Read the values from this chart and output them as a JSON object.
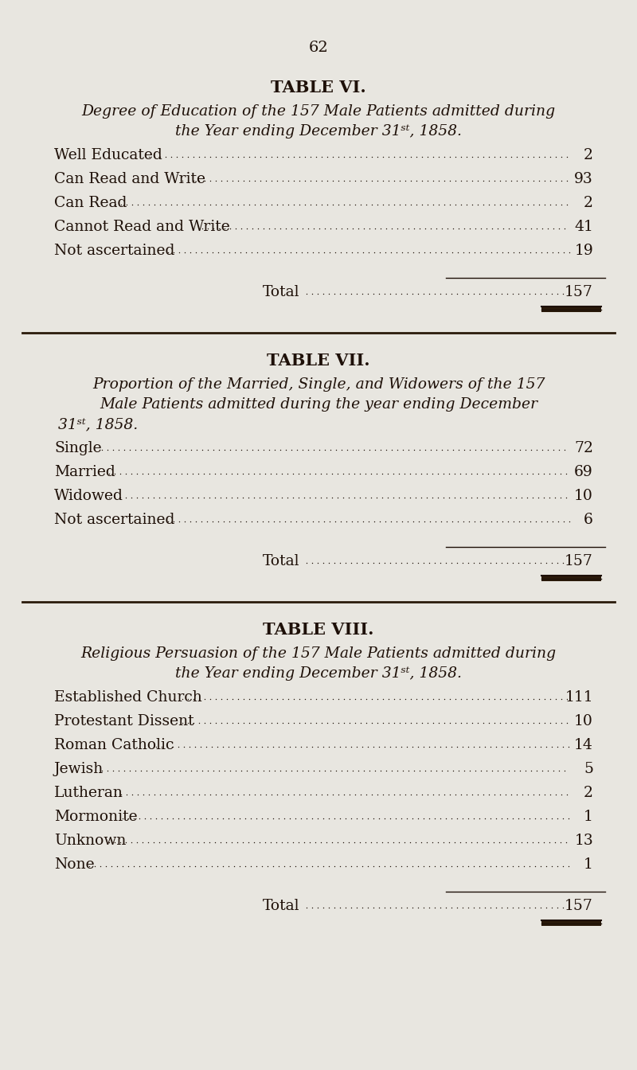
{
  "page_number": "62",
  "bg_color": "#e8e6e0",
  "text_color": "#1e1008",
  "table6": {
    "title": "TABLE VI.",
    "subtitle_line1": "Degree of Education of the 157 Male Patients admitted during",
    "subtitle_line2": "the Year ending December 31ˢᵗ, 1858.",
    "rows": [
      [
        "Well Educated",
        "2"
      ],
      [
        "Can Read and Write",
        "93"
      ],
      [
        "Can Read",
        "2"
      ],
      [
        "Cannot Read and Write",
        "41"
      ],
      [
        "Not ascertained",
        "19"
      ]
    ],
    "total": "157"
  },
  "table7": {
    "title": "TABLE VII.",
    "subtitle_line1": "Proportion of the Married, Single, and Widowers of the 157",
    "subtitle_line2": "Male Patients admitted during the year ending December",
    "subtitle_line3": "31ˢᵗ, 1858.",
    "rows": [
      [
        "Single",
        "72"
      ],
      [
        "Married",
        "69"
      ],
      [
        "Widowed",
        "10"
      ],
      [
        "Not ascertained",
        "6"
      ]
    ],
    "total": "157"
  },
  "table8": {
    "title": "TABLE VIII.",
    "subtitle_line1": "Religious Persuasion of the 157 Male Patients admitted during",
    "subtitle_line2": "the Year ending December 31ˢᵗ, 1858.",
    "rows": [
      [
        "Established Church",
        "111"
      ],
      [
        "Protestant Dissent",
        "10"
      ],
      [
        "Roman Catholic",
        "14"
      ],
      [
        "Jewish",
        "5"
      ],
      [
        "Lutheran",
        "2"
      ],
      [
        "Mormonite",
        "1"
      ],
      [
        "Unknown",
        "13"
      ],
      [
        "None",
        "1"
      ]
    ],
    "total": "157"
  }
}
